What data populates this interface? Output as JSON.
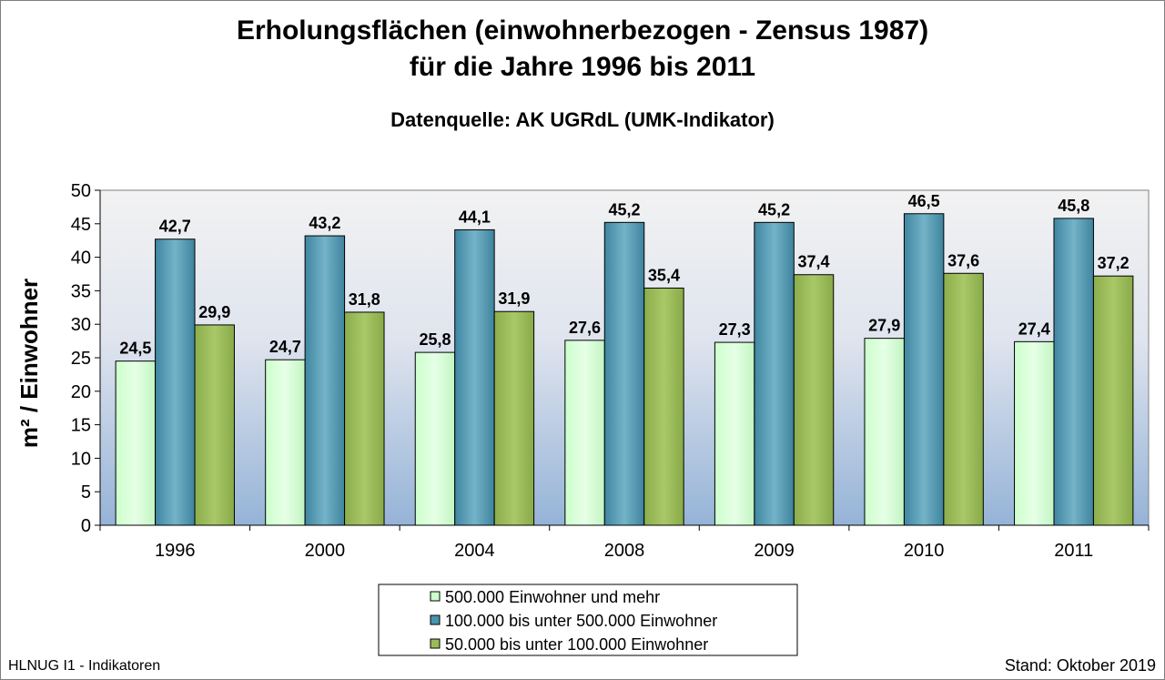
{
  "chart_data": {
    "type": "bar",
    "title_line1": "Erholungsflächen (einwohnerbezogen - Zensus 1987)",
    "title_line2": "für die Jahre 1996 bis 2011",
    "subtitle": "Datenquelle: AK UGRdL (UMK-Indikator)",
    "ylabel": "m² / Einwohner",
    "xlabel": "",
    "ylim": [
      0,
      50
    ],
    "yticks": [
      0,
      5,
      10,
      15,
      20,
      25,
      30,
      35,
      40,
      45,
      50
    ],
    "categories": [
      "1996",
      "2000",
      "2004",
      "2008",
      "2009",
      "2010",
      "2011"
    ],
    "series": [
      {
        "name": "500.000 Einwohner und mehr",
        "color": "#ccffcc",
        "values": [
          24.5,
          24.7,
          25.8,
          27.6,
          27.3,
          27.9,
          27.4
        ],
        "labels": [
          "24,5",
          "24,7",
          "25,8",
          "27,6",
          "27,3",
          "27,9",
          "27,4"
        ]
      },
      {
        "name": "100.000 bis unter 500.000 Einwohner",
        "color": "#4a93ad",
        "values": [
          42.7,
          43.2,
          44.1,
          45.2,
          45.2,
          46.5,
          45.8
        ],
        "labels": [
          "42,7",
          "43,2",
          "44,1",
          "45,2",
          "45,2",
          "46,5",
          "45,8"
        ]
      },
      {
        "name": "50.000 bis unter 100.000 Einwohner",
        "color": "#9bbb59",
        "values": [
          29.9,
          31.8,
          31.9,
          35.4,
          37.4,
          37.6,
          37.2
        ],
        "labels": [
          "29,9",
          "31,8",
          "31,9",
          "35,4",
          "37,4",
          "37,6",
          "37,2"
        ]
      }
    ],
    "grid": false,
    "legend_position": "bottom-center",
    "plot_background": "gradient light-gray to light-blue"
  },
  "footer": {
    "left": "HLNUG I1 - Indikatoren",
    "right": "Stand: Oktober 2019"
  }
}
